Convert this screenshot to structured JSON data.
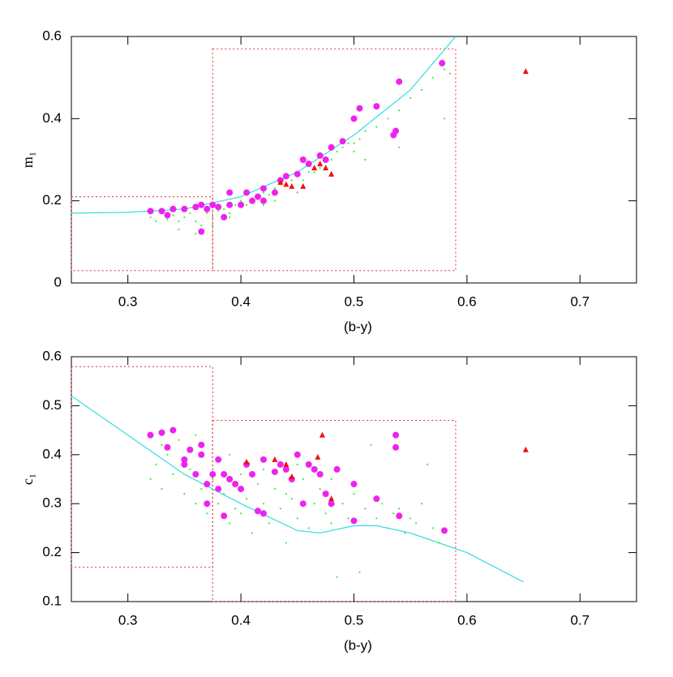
{
  "chart_data": [
    {
      "type": "scatter",
      "xlabel": "(b-y)",
      "ylabel": "m₁",
      "xlim": [
        0.25,
        0.75
      ],
      "ylim": [
        0,
        0.6
      ],
      "xticks": [
        0.3,
        0.4,
        0.5,
        0.6,
        0.7
      ],
      "yticks": [
        0,
        0.2,
        0.4,
        0.6
      ],
      "boxes": [
        {
          "xlim": [
            0.25,
            0.375
          ],
          "ylim": [
            0.03,
            0.21
          ],
          "color": "#e03030"
        },
        {
          "xlim": [
            0.375,
            0.59
          ],
          "ylim": [
            0.03,
            0.57
          ],
          "color": "#e03030"
        }
      ],
      "series": [
        {
          "type": "line",
          "color": "#33dddd",
          "x": [
            0.25,
            0.3,
            0.35,
            0.4,
            0.45,
            0.5,
            0.55,
            0.59
          ],
          "values": [
            0.17,
            0.172,
            0.18,
            0.21,
            0.27,
            0.36,
            0.47,
            0.6
          ]
        },
        {
          "type": "scatter",
          "marker": "dot",
          "color": "#33ee33",
          "x": [
            0.32,
            0.325,
            0.33,
            0.335,
            0.34,
            0.345,
            0.35,
            0.355,
            0.36,
            0.365,
            0.37,
            0.375,
            0.38,
            0.385,
            0.39,
            0.395,
            0.4,
            0.405,
            0.41,
            0.415,
            0.42,
            0.425,
            0.43,
            0.435,
            0.44,
            0.445,
            0.45,
            0.455,
            0.46,
            0.465,
            0.47,
            0.475,
            0.48,
            0.485,
            0.49,
            0.495,
            0.5,
            0.505,
            0.51,
            0.52,
            0.53,
            0.54,
            0.55,
            0.56,
            0.57,
            0.58,
            0.585,
            0.345,
            0.36,
            0.39,
            0.42,
            0.45,
            0.48,
            0.51,
            0.54,
            0.58,
            0.33,
            0.375,
            0.43,
            0.5
          ],
          "values": [
            0.16,
            0.15,
            0.17,
            0.155,
            0.165,
            0.15,
            0.16,
            0.17,
            0.15,
            0.14,
            0.17,
            0.16,
            0.175,
            0.18,
            0.17,
            0.19,
            0.2,
            0.19,
            0.2,
            0.215,
            0.22,
            0.215,
            0.23,
            0.24,
            0.24,
            0.25,
            0.26,
            0.25,
            0.27,
            0.27,
            0.28,
            0.3,
            0.3,
            0.32,
            0.33,
            0.34,
            0.34,
            0.35,
            0.37,
            0.38,
            0.4,
            0.42,
            0.45,
            0.47,
            0.5,
            0.52,
            0.51,
            0.13,
            0.12,
            0.16,
            0.19,
            0.22,
            0.26,
            0.3,
            0.33,
            0.4,
            0.18,
            0.14,
            0.2,
            0.32
          ]
        },
        {
          "type": "scatter",
          "marker": "circle",
          "color": "#ee22ee",
          "x": [
            0.32,
            0.33,
            0.335,
            0.34,
            0.35,
            0.36,
            0.365,
            0.365,
            0.37,
            0.375,
            0.38,
            0.385,
            0.39,
            0.39,
            0.4,
            0.405,
            0.41,
            0.415,
            0.42,
            0.42,
            0.43,
            0.435,
            0.44,
            0.45,
            0.455,
            0.46,
            0.47,
            0.475,
            0.48,
            0.49,
            0.5,
            0.505,
            0.52,
            0.535,
            0.537,
            0.54,
            0.578
          ],
          "values": [
            0.175,
            0.175,
            0.165,
            0.18,
            0.18,
            0.185,
            0.19,
            0.125,
            0.18,
            0.19,
            0.185,
            0.16,
            0.19,
            0.22,
            0.19,
            0.22,
            0.2,
            0.21,
            0.23,
            0.2,
            0.22,
            0.25,
            0.26,
            0.265,
            0.3,
            0.29,
            0.31,
            0.3,
            0.33,
            0.345,
            0.4,
            0.425,
            0.43,
            0.36,
            0.37,
            0.49,
            0.535
          ]
        },
        {
          "type": "scatter",
          "marker": "triangle",
          "color": "#ee1111",
          "x": [
            0.435,
            0.44,
            0.445,
            0.455,
            0.465,
            0.47,
            0.475,
            0.48,
            0.652
          ],
          "values": [
            0.245,
            0.24,
            0.235,
            0.235,
            0.28,
            0.29,
            0.28,
            0.265,
            0.515
          ]
        }
      ]
    },
    {
      "type": "scatter",
      "xlabel": "(b-y)",
      "ylabel": "c₁",
      "xlim": [
        0.25,
        0.75
      ],
      "ylim": [
        0.1,
        0.6
      ],
      "xticks": [
        0.3,
        0.4,
        0.5,
        0.6,
        0.7
      ],
      "yticks": [
        0.1,
        0.2,
        0.3,
        0.4,
        0.5,
        0.6
      ],
      "boxes": [
        {
          "xlim": [
            0.25,
            0.375
          ],
          "ylim": [
            0.17,
            0.58
          ],
          "color": "#e03030"
        },
        {
          "xlim": [
            0.375,
            0.59
          ],
          "ylim": [
            0.1,
            0.47
          ],
          "color": "#e03030"
        }
      ],
      "series": [
        {
          "type": "line",
          "color": "#33dddd",
          "x": [
            0.25,
            0.3,
            0.35,
            0.4,
            0.45,
            0.47,
            0.5,
            0.52,
            0.55,
            0.6,
            0.65
          ],
          "values": [
            0.52,
            0.44,
            0.36,
            0.3,
            0.245,
            0.24,
            0.255,
            0.255,
            0.24,
            0.2,
            0.14
          ]
        },
        {
          "type": "scatter",
          "marker": "dot",
          "color": "#33ee33",
          "x": [
            0.32,
            0.325,
            0.33,
            0.335,
            0.34,
            0.345,
            0.35,
            0.355,
            0.36,
            0.365,
            0.37,
            0.375,
            0.38,
            0.385,
            0.39,
            0.395,
            0.4,
            0.405,
            0.41,
            0.415,
            0.42,
            0.425,
            0.43,
            0.435,
            0.44,
            0.445,
            0.45,
            0.455,
            0.46,
            0.465,
            0.47,
            0.475,
            0.48,
            0.485,
            0.49,
            0.495,
            0.5,
            0.505,
            0.51,
            0.515,
            0.52,
            0.525,
            0.53,
            0.535,
            0.54,
            0.545,
            0.55,
            0.555,
            0.56,
            0.565,
            0.57,
            0.575,
            0.33,
            0.36,
            0.39,
            0.42,
            0.45,
            0.48,
            0.4,
            0.44
          ],
          "values": [
            0.35,
            0.38,
            0.33,
            0.4,
            0.36,
            0.43,
            0.32,
            0.37,
            0.3,
            0.33,
            0.28,
            0.35,
            0.3,
            0.32,
            0.26,
            0.29,
            0.36,
            0.31,
            0.24,
            0.34,
            0.3,
            0.26,
            0.33,
            0.29,
            0.22,
            0.31,
            0.27,
            0.35,
            0.25,
            0.3,
            0.33,
            0.28,
            0.26,
            0.15,
            0.3,
            0.27,
            0.32,
            0.16,
            0.29,
            0.42,
            0.27,
            0.3,
            0.25,
            0.28,
            0.29,
            0.24,
            0.27,
            0.26,
            0.3,
            0.38,
            0.25,
            0.22,
            0.42,
            0.44,
            0.4,
            0.37,
            0.38,
            0.35,
            0.28,
            0.32
          ]
        },
        {
          "type": "scatter",
          "marker": "circle",
          "color": "#ee22ee",
          "x": [
            0.32,
            0.33,
            0.335,
            0.34,
            0.35,
            0.35,
            0.355,
            0.36,
            0.365,
            0.365,
            0.37,
            0.37,
            0.375,
            0.38,
            0.38,
            0.385,
            0.385,
            0.39,
            0.395,
            0.4,
            0.405,
            0.41,
            0.415,
            0.42,
            0.42,
            0.43,
            0.435,
            0.44,
            0.445,
            0.45,
            0.455,
            0.46,
            0.465,
            0.47,
            0.475,
            0.48,
            0.485,
            0.5,
            0.5,
            0.52,
            0.537,
            0.537,
            0.54,
            0.58
          ],
          "values": [
            0.44,
            0.445,
            0.415,
            0.45,
            0.39,
            0.38,
            0.41,
            0.36,
            0.42,
            0.4,
            0.34,
            0.3,
            0.36,
            0.39,
            0.33,
            0.36,
            0.275,
            0.35,
            0.34,
            0.33,
            0.38,
            0.36,
            0.285,
            0.39,
            0.28,
            0.365,
            0.38,
            0.37,
            0.35,
            0.4,
            0.3,
            0.38,
            0.37,
            0.36,
            0.32,
            0.3,
            0.37,
            0.34,
            0.265,
            0.31,
            0.415,
            0.44,
            0.275,
            0.245
          ]
        },
        {
          "type": "scatter",
          "marker": "triangle",
          "color": "#ee1111",
          "x": [
            0.405,
            0.43,
            0.44,
            0.445,
            0.468,
            0.472,
            0.48,
            0.652
          ],
          "values": [
            0.385,
            0.39,
            0.38,
            0.355,
            0.395,
            0.44,
            0.31,
            0.41
          ]
        }
      ]
    }
  ]
}
